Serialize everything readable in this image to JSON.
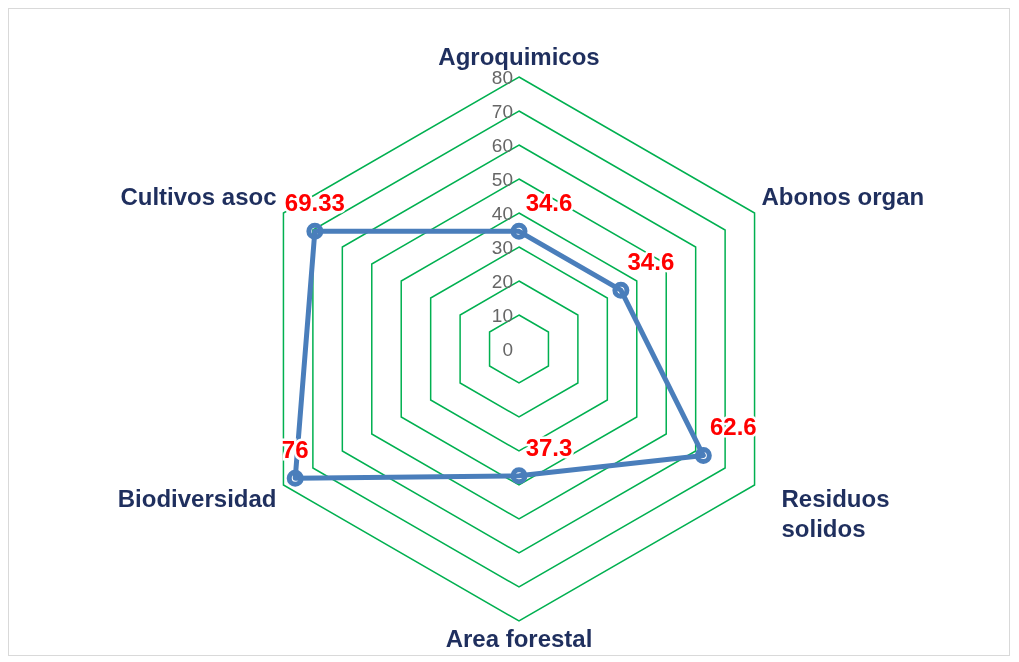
{
  "chart_data": {
    "type": "radar",
    "categories": [
      "Agroquimicos",
      "Abonos organ",
      "Residuos solidos",
      "Area forestal",
      "Biodiversidad",
      "Cultivos asoc"
    ],
    "series": [
      {
        "color": "#4a7ebb",
        "values": [
          34.6,
          34.6,
          62.6,
          37.3,
          76,
          69.33
        ]
      }
    ],
    "ylim": [
      0,
      80
    ],
    "yticks": [
      0,
      10,
      20,
      30,
      40,
      50,
      60,
      70,
      80
    ],
    "grid": true,
    "marker": "circle",
    "data_labels": true,
    "legend": false
  }
}
